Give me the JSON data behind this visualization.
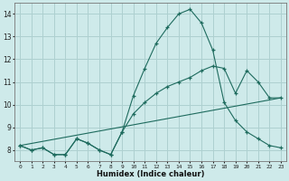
{
  "xlabel": "Humidex (Indice chaleur)",
  "bg_color": "#ceeaea",
  "line_color": "#1e6b5e",
  "grid_color": "#aed0d0",
  "xlim": [
    -0.5,
    23.5
  ],
  "ylim": [
    7.5,
    14.5
  ],
  "xticks": [
    0,
    1,
    2,
    3,
    4,
    5,
    6,
    7,
    8,
    9,
    10,
    11,
    12,
    13,
    14,
    15,
    16,
    17,
    18,
    19,
    20,
    21,
    22,
    23
  ],
  "yticks": [
    8,
    9,
    10,
    11,
    12,
    13,
    14
  ],
  "line1_x": [
    0,
    1,
    2,
    3,
    4,
    5,
    6,
    7,
    8,
    9,
    10,
    11,
    12,
    13,
    14,
    15,
    16,
    17,
    18,
    19,
    20,
    21,
    22,
    23
  ],
  "line1_y": [
    8.2,
    8.0,
    8.1,
    7.8,
    7.8,
    8.5,
    8.3,
    8.0,
    7.8,
    8.8,
    10.4,
    11.6,
    12.7,
    13.4,
    14.0,
    14.2,
    13.6,
    12.4,
    10.1,
    9.3,
    8.8,
    8.5,
    8.2,
    8.1
  ],
  "line2_x": [
    0,
    1,
    2,
    3,
    4,
    5,
    6,
    7,
    8,
    9,
    10,
    11,
    12,
    13,
    14,
    15,
    16,
    17,
    18,
    19,
    20,
    21,
    22,
    23
  ],
  "line2_y": [
    8.2,
    8.0,
    8.1,
    7.8,
    7.8,
    8.5,
    8.3,
    8.0,
    7.8,
    8.8,
    9.6,
    10.1,
    10.5,
    10.8,
    11.0,
    11.2,
    11.5,
    11.7,
    11.6,
    10.5,
    11.5,
    11.0,
    10.3,
    10.3
  ],
  "line3_x": [
    0,
    23
  ],
  "line3_y": [
    8.2,
    10.3
  ]
}
